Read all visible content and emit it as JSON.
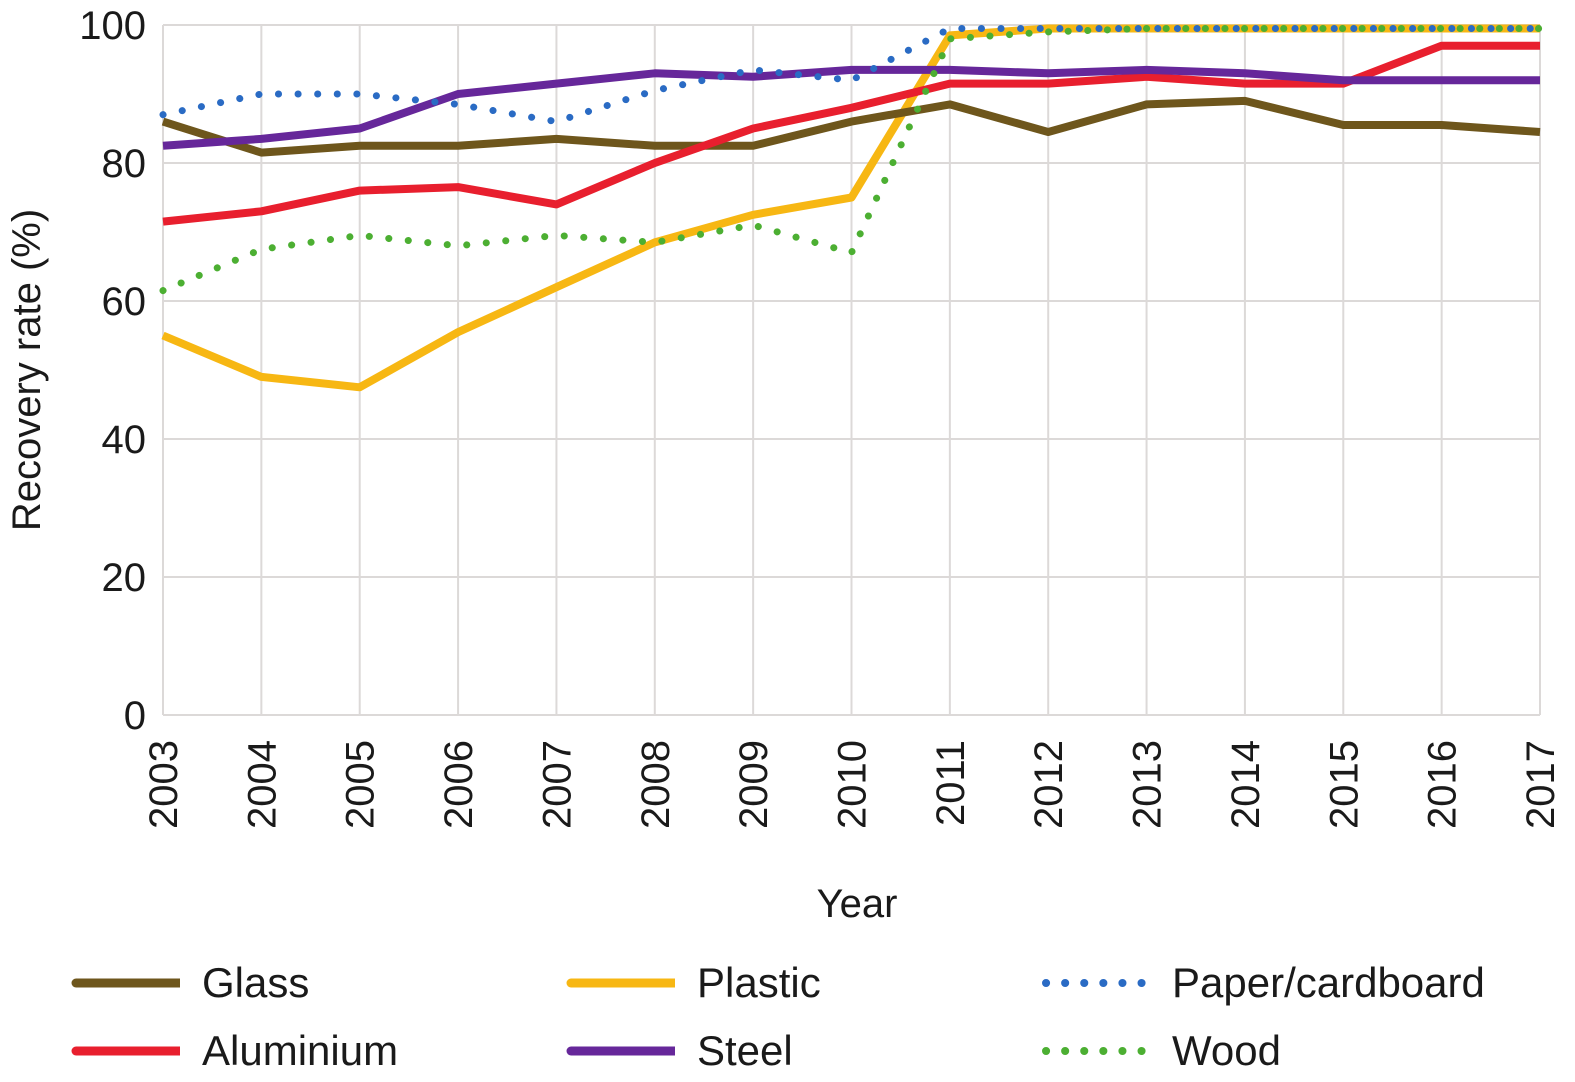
{
  "chart_data": {
    "type": "line",
    "title": "",
    "xlabel": "Year",
    "ylabel": "Recovery rate (%)",
    "ylim": [
      0,
      100
    ],
    "yticks": [
      "0",
      "20",
      "40",
      "60",
      "80",
      "100"
    ],
    "grid": true,
    "legend_position": "bottom",
    "x": [
      "2003",
      "2004",
      "2005",
      "2006",
      "2007",
      "2008",
      "2009",
      "2010",
      "2011",
      "2012",
      "2013",
      "2014",
      "2015",
      "2016",
      "2017"
    ],
    "series": [
      {
        "name": "Glass",
        "color": "#6e561c",
        "style": "solid",
        "values": [
          86,
          81.5,
          82.5,
          82.5,
          83.5,
          82.5,
          82.5,
          86,
          88.5,
          84.5,
          88.5,
          89,
          85.5,
          85.5,
          84.5
        ]
      },
      {
        "name": "Plastic",
        "color": "#f7b713",
        "style": "solid",
        "values": [
          55,
          49,
          47.5,
          55.5,
          62,
          68.5,
          72.5,
          75,
          98.5,
          99.5,
          99.5,
          99.5,
          99.5,
          99.5,
          99.5
        ]
      },
      {
        "name": "Paper/cardboard",
        "color": "#2a6bc4",
        "style": "dotted",
        "values": [
          87,
          90,
          90,
          88.5,
          86,
          90.5,
          93.5,
          92,
          99.5,
          99.5,
          99.5,
          99.5,
          99.5,
          99.5,
          99.5
        ]
      },
      {
        "name": "Aluminium",
        "color": "#e81f2e",
        "style": "solid",
        "values": [
          71.5,
          73,
          76,
          76.5,
          74,
          80,
          85,
          88,
          91.5,
          91.5,
          92.5,
          91.5,
          91.5,
          97,
          97
        ]
      },
      {
        "name": "Steel",
        "color": "#66279a",
        "style": "solid",
        "values": [
          82.5,
          83.5,
          85,
          90,
          91.5,
          93,
          92.5,
          93.5,
          93.5,
          93,
          93.5,
          93,
          92,
          92,
          92
        ]
      },
      {
        "name": "Wood",
        "color": "#4caf32",
        "style": "dotted",
        "values": [
          61.5,
          67.5,
          69.5,
          68,
          69.5,
          68.5,
          71,
          67,
          98,
          99,
          99.5,
          99.5,
          99.5,
          99.5,
          99.5
        ]
      }
    ]
  }
}
